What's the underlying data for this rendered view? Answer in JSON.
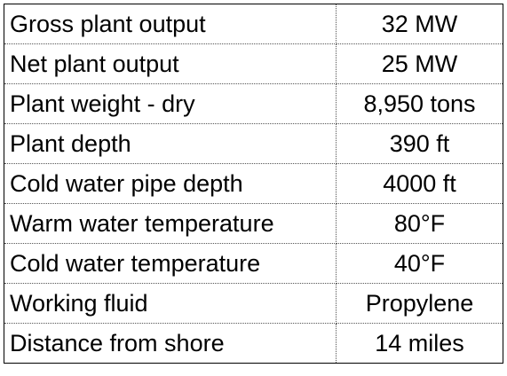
{
  "table": {
    "rows": [
      [
        "Gross plant output",
        "32 MW"
      ],
      [
        "Net plant output",
        "25 MW"
      ],
      [
        "Plant weight - dry",
        "8,950 tons"
      ],
      [
        "Plant depth",
        "390 ft"
      ],
      [
        "Cold water pipe depth",
        "4000 ft"
      ],
      [
        "Warm water temperature",
        "80°F"
      ],
      [
        "Cold water temperature",
        "40°F"
      ],
      [
        "Working fluid",
        "Propylene"
      ],
      [
        "Distance from shore",
        "14 miles"
      ]
    ]
  }
}
